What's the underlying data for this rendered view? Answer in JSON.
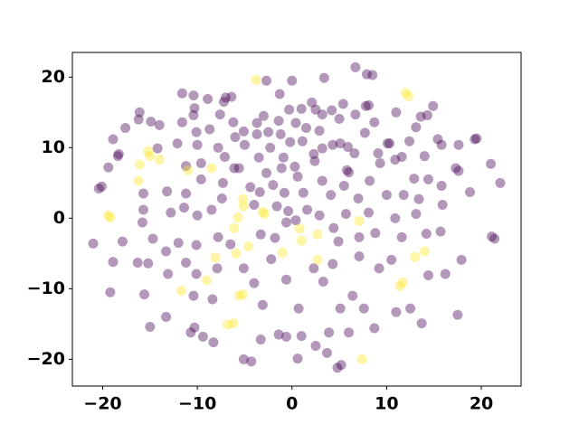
{
  "chart_data": {
    "type": "scatter",
    "xlim": [
      -23.2,
      24.2
    ],
    "ylim": [
      -23.8,
      23.5
    ],
    "xticks": [
      {
        "value": -20,
        "label": "−20"
      },
      {
        "value": -10,
        "label": "−10"
      },
      0,
      10,
      20
    ],
    "yticks": [
      {
        "value": -20,
        "label": "−20"
      },
      {
        "value": -10,
        "label": "−10"
      },
      0,
      10,
      20
    ],
    "series": [
      {
        "color": "#440154",
        "x": [
          6.7,
          3.4,
          0,
          7.9,
          8.5,
          -2.7,
          -11.6,
          -10.4,
          -7.2,
          -6.4,
          -7,
          -8.9,
          -1.3,
          2.1,
          5.4,
          7.8,
          8.1,
          14.9,
          -16.1,
          -10.3,
          -16.2,
          -14.9,
          -17.6,
          -14,
          -11.6,
          -10.4,
          -7.6,
          -3,
          -3.7,
          -0.3,
          1,
          2.5,
          3.2,
          4.2,
          5,
          6.7,
          11,
          13.6,
          14.3,
          0.4,
          -1.4,
          -6.2,
          -5.1,
          -8.7,
          -10.1,
          -12.1,
          -10,
          -6,
          -3.7,
          -2.5,
          -1.2,
          1.5,
          2.9,
          7.7,
          8.7,
          13.1,
          15.4,
          15.8,
          17.6,
          19.3,
          19.5,
          21,
          -18.9,
          -18.3,
          -18.4,
          -19.4,
          -20.1,
          -20.4,
          -14.2,
          -11.2,
          -9.6,
          -7.1,
          -7.8,
          -5,
          -2.3,
          -0.2,
          1.1,
          3.2,
          4.3,
          5.9,
          5.1,
          10.1,
          10.3,
          12.4,
          9.1,
          6.6,
          2.3,
          -0.9,
          -3.5,
          -6.1,
          -5.6,
          -2.7,
          -1.1,
          0.3,
          2.4,
          5.8,
          6,
          9.3,
          10.9,
          11.6,
          14,
          17.3,
          17.6,
          15.8,
          14.4,
          12.9,
          8.2,
          5.5,
          3.2,
          0.6,
          -2,
          -7.3,
          -9.6,
          -13.2,
          -15.7,
          -11.2,
          -7.4,
          -4.4,
          -3.4,
          -0.8,
          1.2,
          4.1,
          7,
          10,
          11.8,
          13.4,
          15.9,
          18.8,
          22,
          -12.8,
          -15.7,
          -11.4,
          -10,
          -8.5,
          -4,
          -1.6,
          -0.4,
          1.6,
          2.9,
          5.7,
          8.1,
          10.9,
          13.1,
          -15.8,
          -17.9,
          -21,
          -14.7,
          -13.3,
          -12,
          -10.1,
          -7.8,
          -6.5,
          -3.3,
          -1.8,
          -0.6,
          0.4,
          4.4,
          4.9,
          7.1,
          8.8,
          11.6,
          14.2,
          15.7,
          21.1,
          21.4,
          -18.9,
          -16.3,
          -15.2,
          -11.2,
          -10.1,
          -7.9,
          -5.1,
          -2.2,
          -0.6,
          2.3,
          4.3,
          7.1,
          9.2,
          10.5,
          14.4,
          16.2,
          17.9,
          -19.2,
          -15.6,
          -13.1,
          -10.4,
          -8.4,
          -4,
          -3.1,
          0.7,
          3.3,
          5.1,
          6.4,
          7.6,
          11,
          12.5,
          13.7,
          17.5,
          -15,
          -13.3,
          -10.3,
          -9.4,
          -8.3,
          -3.3,
          -1.4,
          -0.6,
          1,
          2.5,
          3.9,
          6,
          8.7,
          0.6,
          3.7,
          4.8,
          5.2,
          -5.1,
          -4.3,
          -10.7
        ],
        "values": [
          21.4,
          19.9,
          19.5,
          20.4,
          20.3,
          19.5,
          17.7,
          17.4,
          16.5,
          17.2,
          17.1,
          16.9,
          17.6,
          16.4,
          16.2,
          15.9,
          16,
          15.9,
          15,
          15.6,
          14,
          13.7,
          12.8,
          13.2,
          13.6,
          14.6,
          14.7,
          14.5,
          13.5,
          15.4,
          15.5,
          15.4,
          14.7,
          15.3,
          14.1,
          14.7,
          15,
          14.4,
          14.6,
          13.5,
          13.8,
          13.6,
          12.3,
          12.6,
          12.2,
          10.6,
          10.4,
          11.5,
          11.9,
          12.2,
          11.9,
          12.8,
          12.4,
          12.1,
          13.6,
          12.9,
          11.2,
          10.4,
          10.4,
          11.2,
          11.3,
          7.7,
          11.2,
          9.1,
          8.8,
          7.2,
          4.5,
          4.2,
          9.9,
          7.4,
          7.8,
          8.7,
          10,
          10.4,
          10,
          10.8,
          10.9,
          9.9,
          10.4,
          10.1,
          10.6,
          10.6,
          10.6,
          10.9,
          9.2,
          9.2,
          9.1,
          8.6,
          8.6,
          7.1,
          7.1,
          6.4,
          7.1,
          7.3,
          8.1,
          6.8,
          6.5,
          7.8,
          8.3,
          8.7,
          8.8,
          7.1,
          6.7,
          4.6,
          5.5,
          5.6,
          5.3,
          4.6,
          5.3,
          5.9,
          4.7,
          5,
          5.5,
          3.8,
          3.5,
          3.5,
          2.8,
          4.4,
          3.7,
          3.6,
          3.6,
          3.3,
          2.8,
          3.3,
          3.3,
          2.7,
          1.9,
          3.7,
          5,
          0.8,
          1.2,
          1.5,
          0.4,
          1.2,
          1.9,
          1.7,
          1,
          1.2,
          0.4,
          0.6,
          0.8,
          0,
          0.6,
          -0.6,
          -3.3,
          -3.6,
          -2.9,
          -4.7,
          -3.5,
          -3.8,
          -2.7,
          -3.7,
          -2.3,
          -2.8,
          -0.6,
          -0.3,
          -1.4,
          -3.3,
          -2.7,
          -2.1,
          -2.7,
          -2.2,
          -1.9,
          -2.6,
          -2.9,
          -6.2,
          -6.3,
          -6.4,
          -6.3,
          -7.9,
          -7.1,
          -7.1,
          -5.8,
          -8.7,
          -7.1,
          -6.5,
          -5.4,
          -7.1,
          -5.9,
          -8.1,
          -7.9,
          -5.9,
          -10.5,
          -10.8,
          -7.9,
          -11,
          -11.5,
          -9.2,
          -12.3,
          -12.8,
          -9,
          -12.8,
          -11,
          -12.8,
          -13.3,
          -12.8,
          -14.9,
          -13.7,
          -15.4,
          -14,
          -15.5,
          -16.8,
          -17.6,
          -17.2,
          -16.5,
          -16.8,
          -16.7,
          -18.1,
          -16.2,
          -16.2,
          -15.6,
          -19.9,
          -19.1,
          -21.2,
          -20.8,
          -20,
          -20.3,
          -16.2
        ]
      },
      {
        "color": "#fde725",
        "x": [
          -3.8,
          12,
          12.3,
          -15.2,
          -15,
          -16.1,
          -14,
          -16.2,
          -11,
          -8.5,
          -19.4,
          -19.2,
          -5.2,
          -5.1,
          -5.7,
          -3.1,
          -2.9,
          -6.1,
          -4.6,
          -5.9,
          -1,
          0.8,
          1,
          2.7,
          2.7,
          7.1,
          13,
          14,
          11.4,
          11.7,
          -11.7,
          -9,
          -8.1,
          -5.6,
          -5.2,
          -6.8,
          -6.2,
          7.4
        ],
        "values": [
          19.6,
          17.8,
          17.3,
          9.5,
          8.8,
          7.6,
          8.3,
          5.3,
          6.8,
          7.1,
          0.4,
          0.1,
          2.7,
          1.7,
          0.1,
          0.9,
          0.6,
          -1.4,
          -4,
          -5,
          -4.9,
          -1.5,
          -3.2,
          -2.3,
          -5.9,
          -0.4,
          -5.5,
          -4.7,
          -9.6,
          -9.1,
          -10.3,
          -8.8,
          -5.6,
          -11,
          -10.8,
          -15.1,
          -14.9,
          -20
        ]
      }
    ]
  }
}
